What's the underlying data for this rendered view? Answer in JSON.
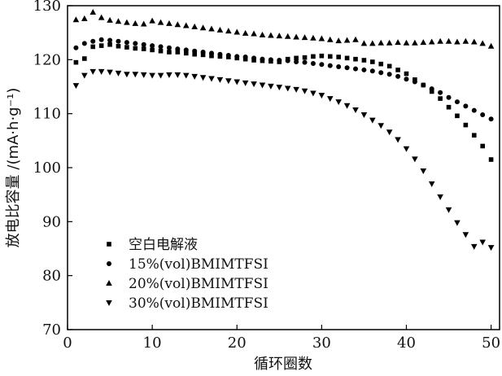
{
  "chart_data": {
    "type": "scatter",
    "xlabel": "循环圈数",
    "ylabel": "放电比容量 /(mA·h·g⁻¹)",
    "xlim": [
      0,
      51
    ],
    "ylim": [
      70,
      130
    ],
    "xticks": [
      "0",
      "10",
      "20",
      "30",
      "40",
      "50"
    ],
    "yticks": [
      "70",
      "80",
      "90",
      "100",
      "110",
      "120",
      "130"
    ],
    "grid": false,
    "legend_position": "bottom-left",
    "series": [
      {
        "name": "空白电解液",
        "marker": "square",
        "x": [
          1,
          2,
          3,
          4,
          5,
          6,
          7,
          8,
          9,
          10,
          11,
          12,
          13,
          14,
          15,
          16,
          17,
          18,
          19,
          20,
          21,
          22,
          23,
          24,
          25,
          26,
          27,
          28,
          29,
          30,
          31,
          32,
          33,
          34,
          35,
          36,
          37,
          38,
          39,
          40,
          41,
          42,
          43,
          44,
          45,
          46,
          47,
          48,
          49,
          50
        ],
        "y": [
          119.5,
          120.2,
          122.4,
          122.6,
          122.8,
          122.5,
          122.3,
          122.1,
          122.0,
          121.8,
          121.6,
          121.4,
          121.4,
          121.2,
          121.0,
          120.9,
          120.7,
          120.6,
          120.5,
          120.3,
          120.1,
          119.9,
          119.8,
          119.7,
          119.6,
          120.1,
          120.3,
          120.4,
          120.6,
          120.7,
          120.6,
          120.5,
          120.3,
          120.1,
          119.9,
          119.6,
          119.2,
          118.8,
          118.1,
          117.4,
          116.3,
          115.3,
          114.1,
          112.8,
          111.2,
          109.6,
          107.9,
          106.0,
          104.0,
          101.5
        ]
      },
      {
        "name": "15%(vol)BMIMTFSI",
        "marker": "circle",
        "x": [
          1,
          2,
          3,
          4,
          5,
          6,
          7,
          8,
          9,
          10,
          11,
          12,
          13,
          14,
          15,
          16,
          17,
          18,
          19,
          20,
          21,
          22,
          23,
          24,
          25,
          26,
          27,
          28,
          29,
          30,
          31,
          32,
          33,
          34,
          35,
          36,
          37,
          38,
          39,
          40,
          41,
          42,
          43,
          44,
          45,
          46,
          47,
          48,
          49,
          50
        ],
        "y": [
          122.2,
          123.0,
          123.4,
          123.7,
          123.6,
          123.4,
          123.2,
          123.0,
          122.8,
          122.6,
          122.4,
          122.2,
          122.0,
          121.8,
          121.6,
          121.4,
          121.2,
          121.0,
          120.8,
          120.6,
          120.5,
          120.3,
          120.1,
          120.0,
          119.9,
          119.8,
          119.6,
          119.5,
          119.3,
          119.1,
          118.9,
          118.7,
          118.5,
          118.3,
          118.1,
          117.9,
          117.6,
          117.3,
          116.9,
          116.4,
          115.9,
          115.3,
          114.6,
          113.9,
          113.0,
          112.2,
          111.4,
          110.6,
          109.8,
          109.0
        ]
      },
      {
        "name": "20%(vol)BMIMTFSI",
        "marker": "triangle-up",
        "x": [
          1,
          2,
          3,
          4,
          5,
          6,
          7,
          8,
          9,
          10,
          11,
          12,
          13,
          14,
          15,
          16,
          17,
          18,
          19,
          20,
          21,
          22,
          23,
          24,
          25,
          26,
          27,
          28,
          29,
          30,
          31,
          32,
          33,
          34,
          35,
          36,
          37,
          38,
          39,
          40,
          41,
          42,
          43,
          44,
          45,
          46,
          47,
          48,
          49,
          50
        ],
        "y": [
          127.4,
          127.6,
          128.8,
          127.8,
          127.3,
          127.1,
          126.9,
          126.7,
          126.6,
          127.2,
          126.9,
          126.7,
          126.5,
          126.3,
          126.1,
          125.9,
          125.7,
          125.5,
          125.3,
          125.1,
          124.9,
          124.8,
          124.6,
          124.5,
          124.4,
          124.3,
          124.2,
          124.1,
          124.0,
          123.9,
          123.7,
          123.5,
          123.6,
          123.7,
          123.0,
          123.0,
          123.1,
          123.1,
          123.2,
          123.1,
          123.1,
          123.2,
          123.3,
          123.4,
          123.4,
          123.3,
          123.4,
          123.3,
          123.0,
          122.5
        ]
      },
      {
        "name": "30%(vol)BMIMTFSI",
        "marker": "triangle-down",
        "x": [
          1,
          2,
          3,
          4,
          5,
          6,
          7,
          8,
          9,
          10,
          11,
          12,
          13,
          14,
          15,
          16,
          17,
          18,
          19,
          20,
          21,
          22,
          23,
          24,
          25,
          26,
          27,
          28,
          29,
          30,
          31,
          32,
          33,
          34,
          35,
          36,
          37,
          38,
          39,
          40,
          41,
          42,
          43,
          44,
          45,
          46,
          47,
          48,
          49,
          50
        ],
        "y": [
          115.2,
          117.1,
          117.8,
          117.8,
          117.7,
          117.5,
          117.3,
          117.3,
          117.2,
          117.1,
          117.1,
          117.2,
          117.2,
          117.1,
          116.9,
          116.7,
          116.5,
          116.3,
          116.1,
          115.9,
          115.7,
          115.5,
          115.3,
          115.1,
          114.9,
          114.7,
          114.5,
          114.2,
          113.8,
          113.4,
          112.8,
          112.2,
          111.5,
          110.7,
          109.8,
          108.8,
          107.8,
          106.6,
          105.2,
          103.5,
          101.6,
          99.4,
          97.0,
          94.6,
          92.2,
          89.8,
          87.6,
          85.4,
          86.2,
          85.2
        ]
      }
    ]
  }
}
